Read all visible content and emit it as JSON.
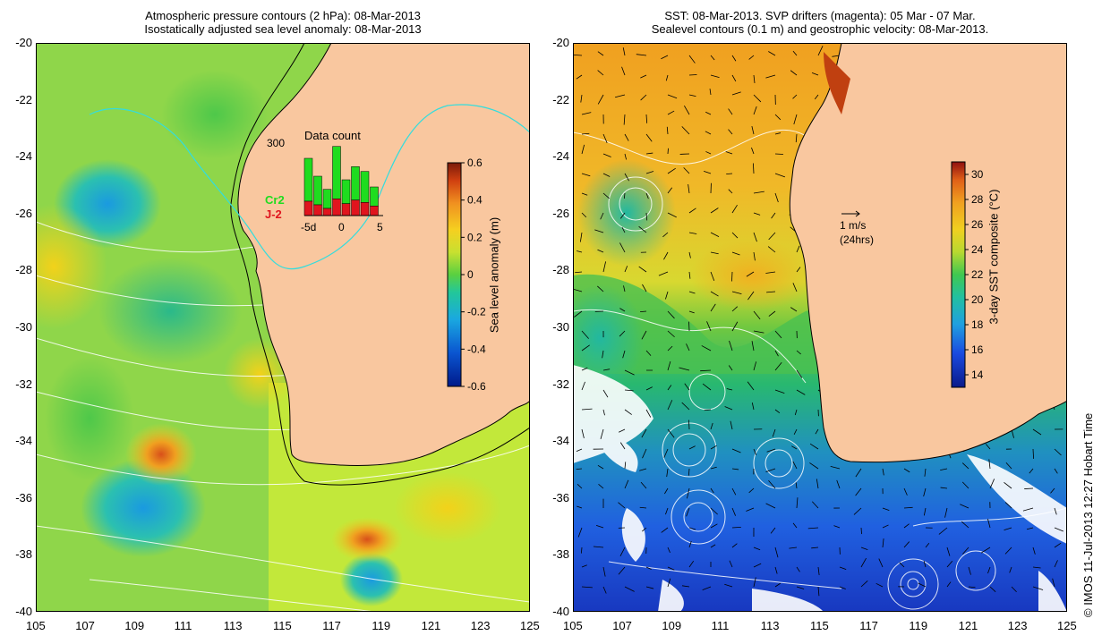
{
  "left_panel": {
    "title_line1": "Atmospheric pressure contours (2 hPa): 08-Mar-2013",
    "title_line2": "Isostatically adjusted sea level anomaly: 08-Mar-2013",
    "colorbar": {
      "title": "Sea level anomaly (m)",
      "ticks": [
        "0.6",
        "0.4",
        "0.2",
        "0",
        "-0.2",
        "-0.4",
        "-0.6"
      ],
      "range": [
        -0.6,
        0.6
      ]
    },
    "inset": {
      "title": "Data count",
      "ymax_label": "300",
      "x_ticks": [
        "-5d",
        "0",
        "5"
      ],
      "cr2_label": "Cr2",
      "j2_label": "J-2",
      "cr2_color": "#1fdc1f",
      "j2_color": "#e0141e",
      "counts": [
        {
          "day": -4,
          "cr2": 180,
          "j2": 60
        },
        {
          "day": -3,
          "cr2": 120,
          "j2": 45
        },
        {
          "day": -2,
          "cr2": 80,
          "j2": 30
        },
        {
          "day": -1,
          "cr2": 220,
          "j2": 70
        },
        {
          "day": 0,
          "cr2": 100,
          "j2": 50
        },
        {
          "day": 1,
          "cr2": 140,
          "j2": 65
        },
        {
          "day": 2,
          "cr2": 130,
          "j2": 55
        },
        {
          "day": 3,
          "cr2": 80,
          "j2": 40
        }
      ]
    }
  },
  "right_panel": {
    "title_line1": "SST: 08-Mar-2013. SVP drifters (magenta): 05 Mar - 07 Mar.",
    "title_line2": "Sealevel contours (0.1 m) and geostrophic velocity: 08-Mar-2013.",
    "colorbar": {
      "title": "3-day SST composite (°C)",
      "ticks": [
        "30",
        "28",
        "26",
        "24",
        "22",
        "20",
        "18",
        "16",
        "14"
      ],
      "range": [
        13,
        31
      ]
    },
    "velocity_scale": {
      "line1": "1 m/s",
      "line2": "(24hrs)"
    }
  },
  "axes": {
    "x_ticks": [
      "105",
      "107",
      "109",
      "111",
      "113",
      "115",
      "117",
      "119",
      "121",
      "123",
      "125"
    ],
    "y_ticks": [
      "-20",
      "-22",
      "-24",
      "-26",
      "-28",
      "-30",
      "-32",
      "-34",
      "-36",
      "-38",
      "-40"
    ]
  },
  "copyright": "© IMOS 11-Jul-2013 12:27 Hobart Time",
  "colors": {
    "land": "#f9c79f",
    "sla_background": "#b9e63a",
    "sst_warm": "#f0a020",
    "sst_cool": "#2a63e0"
  }
}
